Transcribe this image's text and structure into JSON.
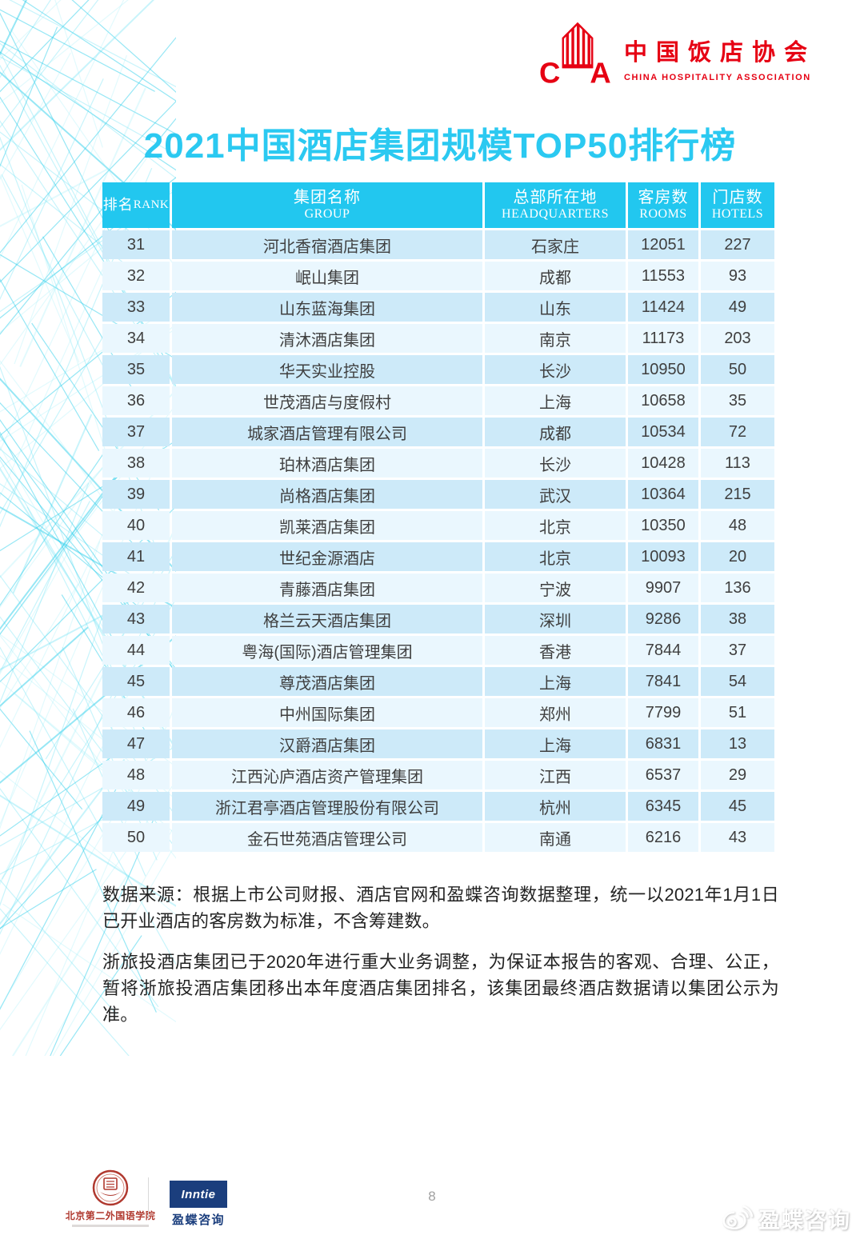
{
  "logo": {
    "zh": "中国饭店协会",
    "en": "CHINA HOSPITALITY ASSOCIATION"
  },
  "title": "2021中国酒店集团规模TOP50排行榜",
  "table": {
    "columns": [
      {
        "zh": "排名",
        "en": "RANK"
      },
      {
        "zh": "集团名称",
        "en": "GROUP"
      },
      {
        "zh": "总部所在地",
        "en": "HEADQUARTERS"
      },
      {
        "zh": "客房数",
        "en": "ROOMS"
      },
      {
        "zh": "门店数",
        "en": "HOTELS"
      }
    ],
    "rows": [
      {
        "rank": "31",
        "group": "河北香宿酒店集团",
        "hq": "石家庄",
        "rooms": "12051",
        "hotels": "227"
      },
      {
        "rank": "32",
        "group": "岷山集团",
        "hq": "成都",
        "rooms": "11553",
        "hotels": "93"
      },
      {
        "rank": "33",
        "group": "山东蓝海集团",
        "hq": "山东",
        "rooms": "11424",
        "hotels": "49"
      },
      {
        "rank": "34",
        "group": "清沐酒店集团",
        "hq": "南京",
        "rooms": "11173",
        "hotels": "203"
      },
      {
        "rank": "35",
        "group": "华天实业控股",
        "hq": "长沙",
        "rooms": "10950",
        "hotels": "50"
      },
      {
        "rank": "36",
        "group": "世茂酒店与度假村",
        "hq": "上海",
        "rooms": "10658",
        "hotels": "35"
      },
      {
        "rank": "37",
        "group": "城家酒店管理有限公司",
        "hq": "成都",
        "rooms": "10534",
        "hotels": "72"
      },
      {
        "rank": "38",
        "group": "珀林酒店集团",
        "hq": "长沙",
        "rooms": "10428",
        "hotels": "113"
      },
      {
        "rank": "39",
        "group": "尚格酒店集团",
        "hq": "武汉",
        "rooms": "10364",
        "hotels": "215"
      },
      {
        "rank": "40",
        "group": "凯莱酒店集团",
        "hq": "北京",
        "rooms": "10350",
        "hotels": "48"
      },
      {
        "rank": "41",
        "group": "世纪金源酒店",
        "hq": "北京",
        "rooms": "10093",
        "hotels": "20"
      },
      {
        "rank": "42",
        "group": "青藤酒店集团",
        "hq": "宁波",
        "rooms": "9907",
        "hotels": "136"
      },
      {
        "rank": "43",
        "group": "格兰云天酒店集团",
        "hq": "深圳",
        "rooms": "9286",
        "hotels": "38"
      },
      {
        "rank": "44",
        "group": "粤海(国际)酒店管理集团",
        "hq": "香港",
        "rooms": "7844",
        "hotels": "37"
      },
      {
        "rank": "45",
        "group": "尊茂酒店集团",
        "hq": "上海",
        "rooms": "7841",
        "hotels": "54"
      },
      {
        "rank": "46",
        "group": "中州国际集团",
        "hq": "郑州",
        "rooms": "7799",
        "hotels": "51"
      },
      {
        "rank": "47",
        "group": "汉爵酒店集团",
        "hq": "上海",
        "rooms": "6831",
        "hotels": "13"
      },
      {
        "rank": "48",
        "group": "江西沁庐酒店资产管理集团",
        "hq": "江西",
        "rooms": "6537",
        "hotels": "29"
      },
      {
        "rank": "49",
        "group": "浙江君亭酒店管理股份有限公司",
        "hq": "杭州",
        "rooms": "6345",
        "hotels": "45"
      },
      {
        "rank": "50",
        "group": "金石世苑酒店管理公司",
        "hq": "南通",
        "rooms": "6216",
        "hotels": "43"
      }
    ]
  },
  "notes": [
    "数据来源：根据上市公司财报、酒店官网和盈蝶咨询数据整理，统一以2021年1月1日已开业酒店的客房数为标准，不含筹建数。",
    "浙旅投酒店集团已于2020年进行重大业务调整，为保证本报告的客观、合理、公正，暂将浙旅投酒店集团移出本年度酒店集团排名，该集团最终酒店数据请以集团公示为准。"
  ],
  "footer": {
    "university": "北京第二外国语学院",
    "inntie": "Inntie",
    "inntie_sub": "盈蝶咨询",
    "page": "8",
    "watermark": "盈蝶咨询"
  },
  "colors": {
    "accent_cyan": "#22c7ef",
    "title_cyan": "#2bc9f1",
    "row_odd": "#cdeaf9",
    "row_even": "#eaf7fe",
    "brand_red": "#e60113",
    "brand_navy": "#1b3e7d"
  }
}
